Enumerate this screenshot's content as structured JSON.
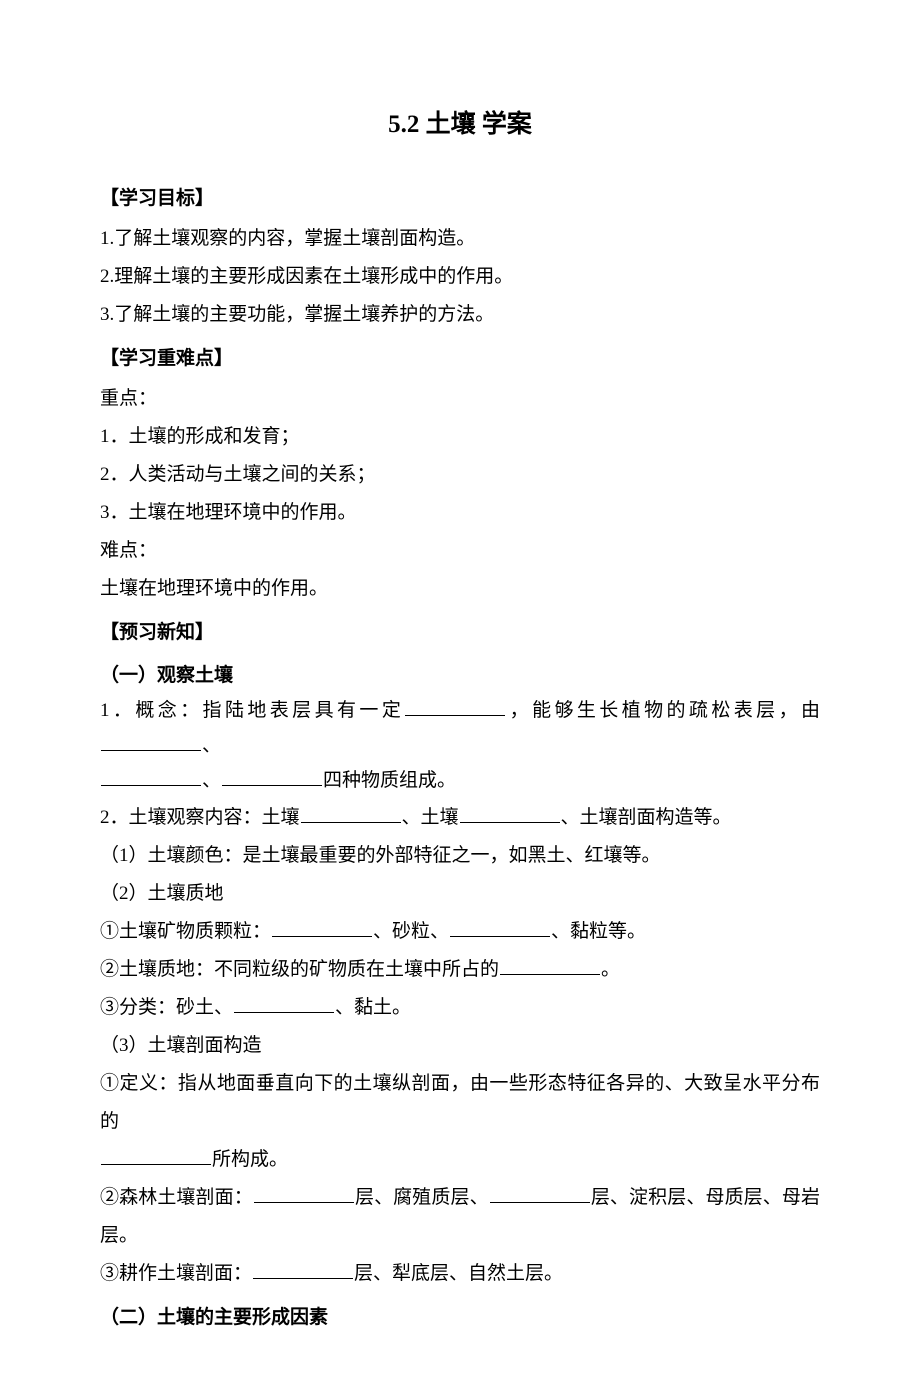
{
  "title": "5.2 土壤 学案",
  "sections": {
    "objectives": {
      "label": "【学习目标】",
      "items": [
        "1.了解土壤观察的内容，掌握土壤剖面构造。",
        "2.理解土壤的主要形成因素在土壤形成中的作用。",
        "3.了解土壤的主要功能，掌握土壤养护的方法。"
      ]
    },
    "keypoints": {
      "label": "【学习重难点】",
      "keyLabel": "重点：",
      "keys": [
        "1．土壤的形成和发育；",
        "2．人类活动与土壤之间的关系；",
        "3．土壤在地理环境中的作用。"
      ],
      "diffLabel": "难点：",
      "diffs": [
        "土壤在地理环境中的作用。"
      ]
    },
    "preview": {
      "label": "【预习新知】",
      "h1": "（一）观察土壤",
      "p1a": "1．概念：指陆地表层具有一定",
      "p1b": "，能够生长植物的疏松表层，由",
      "p1c": "、",
      "p1d": "、",
      "p1e": "四种物质组成。",
      "p2a": "2．土壤观察内容：土壤",
      "p2b": "、土壤",
      "p2c": "、土壤剖面构造等。",
      "p3": "（1）土壤颜色：是土壤最重要的外部特征之一，如黑土、红壤等。",
      "p4": "（2）土壤质地",
      "p5a": "①土壤矿物质颗粒：",
      "p5b": "、砂粒、",
      "p5c": "、黏粒等。",
      "p6a": "②土壤质地：不同粒级的矿物质在土壤中所占的",
      "p6b": "。",
      "p7a": "③分类：砂土、",
      "p7b": "、黏土。",
      "p8": "（3）土壤剖面构造",
      "p9a": "①定义：指从地面垂直向下的土壤纵剖面，由一些形态特征各异的、大致呈水平分布的",
      "p9b": "所构成。",
      "p10a": "②森林土壤剖面：",
      "p10b": "层、腐殖质层、",
      "p10c": "层、淀积层、母质层、母岩层。",
      "p11a": "③耕作土壤剖面：",
      "p11b": "层、犁底层、自然土层。",
      "h2": "（二）土壤的主要形成因素"
    }
  },
  "style": {
    "text_color": "#000000",
    "bg_color": "#ffffff",
    "title_fontsize": 25,
    "body_fontsize": 19,
    "line_height": 2.0,
    "blank_widths": {
      "short": 90,
      "med": 100,
      "long": 110
    }
  }
}
